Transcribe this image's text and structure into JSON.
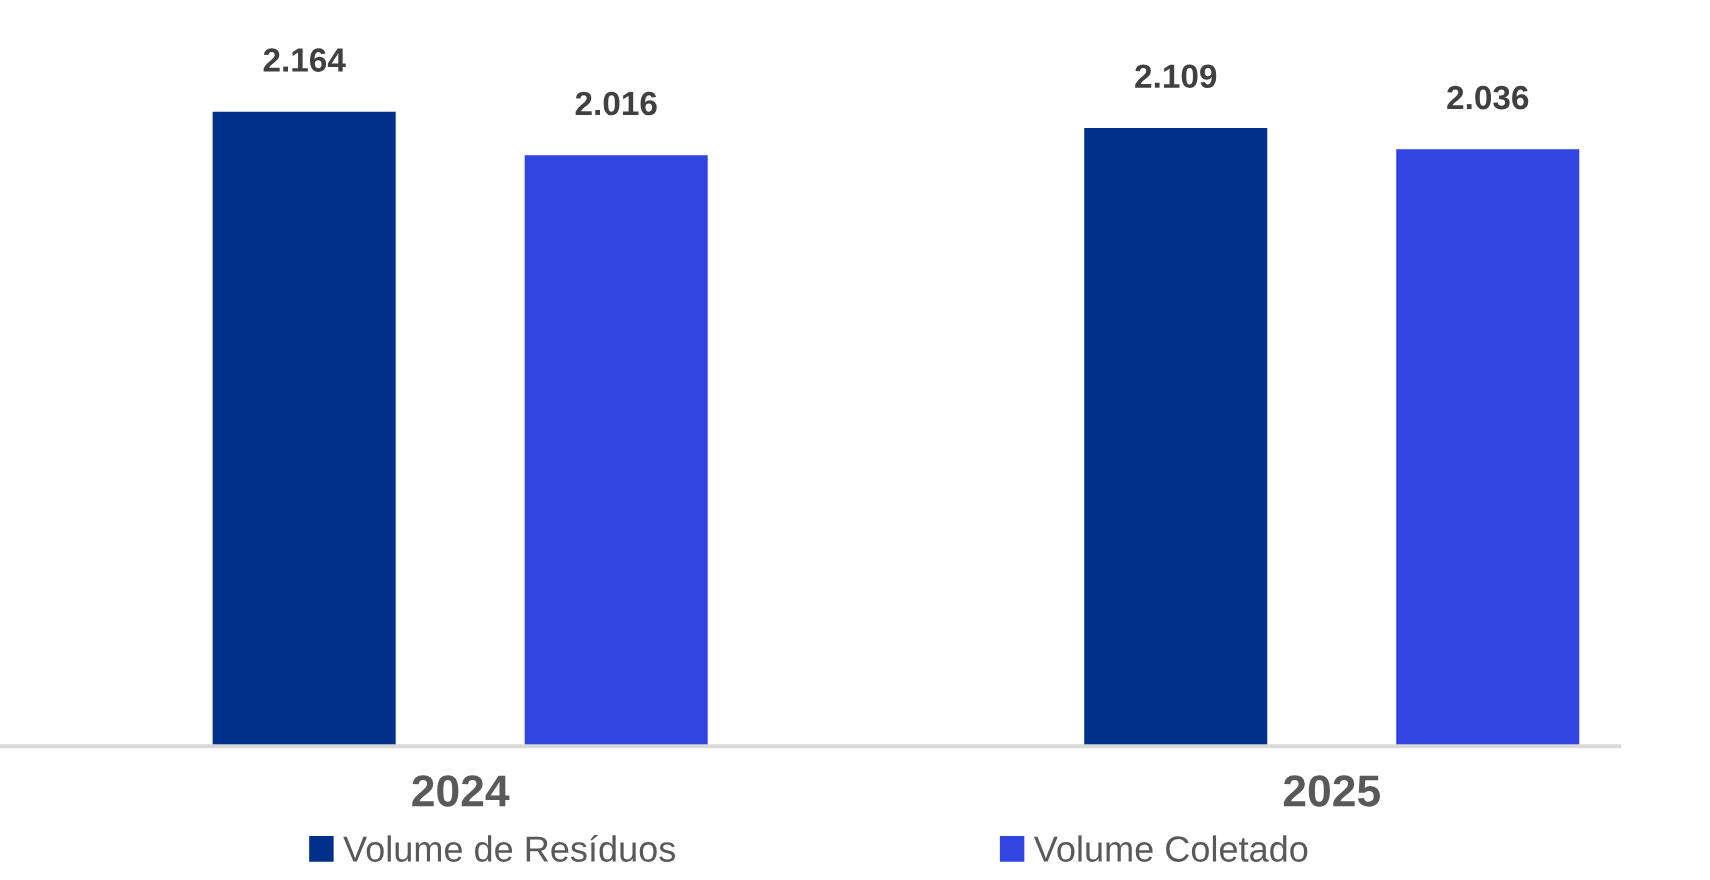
{
  "chart_data": {
    "type": "bar",
    "categories": [
      "2024",
      "2025"
    ],
    "series": [
      {
        "name": "Volume de Resíduos",
        "color": "#00308a",
        "values": [
          2.164,
          2.109
        ],
        "value_labels": [
          "2.164",
          "2.109"
        ]
      },
      {
        "name": "Volume Coletado",
        "color": "#3146e0",
        "values": [
          2.016,
          2.036
        ],
        "value_labels": [
          "2.016",
          "2.036"
        ]
      }
    ],
    "tick_labels": "x",
    "legend": "bottom"
  }
}
